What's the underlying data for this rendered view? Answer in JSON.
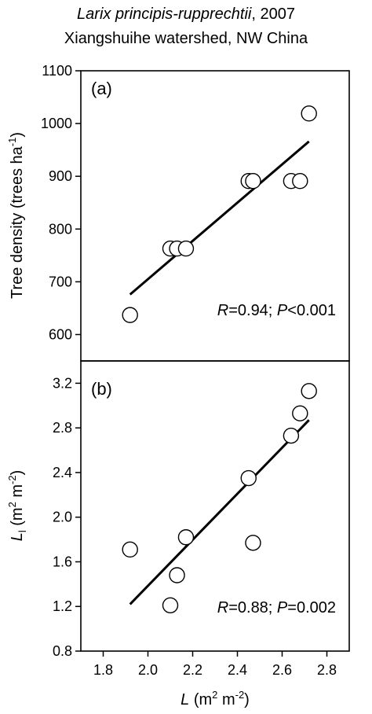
{
  "header": {
    "title_italic": "Larix principis-rupprechtii",
    "title_suffix": ", 2007",
    "subtitle": "Xiangshuihe watershed,  NW  China"
  },
  "chart_data": [
    {
      "type": "scatter",
      "panel_label": "(a)",
      "ylabel": "Tree density (trees ha⁻¹)",
      "xlim": [
        1.7,
        2.9
      ],
      "ylim": [
        550,
        1100
      ],
      "yticks": [
        600,
        700,
        800,
        900,
        1000,
        1100
      ],
      "points": [
        {
          "x": 1.92,
          "y": 637
        },
        {
          "x": 2.1,
          "y": 763
        },
        {
          "x": 2.13,
          "y": 763
        },
        {
          "x": 2.17,
          "y": 763
        },
        {
          "x": 2.45,
          "y": 891
        },
        {
          "x": 2.47,
          "y": 891
        },
        {
          "x": 2.64,
          "y": 891
        },
        {
          "x": 2.68,
          "y": 891
        },
        {
          "x": 2.72,
          "y": 1019
        }
      ],
      "fit_line": {
        "x": [
          1.92,
          2.72
        ],
        "y": [
          676,
          966
        ]
      },
      "annotation": {
        "R_label": "R",
        "R_value": "=0.94; ",
        "P_label": "P",
        "P_value": "<0.001"
      }
    },
    {
      "type": "scatter",
      "panel_label": "(b)",
      "ylabel": "L_l (m² m⁻²)",
      "xlabel": "L (m² m⁻²)",
      "xlim": [
        1.7,
        2.9
      ],
      "ylim": [
        0.8,
        3.4
      ],
      "xticks": [
        1.8,
        2.0,
        2.2,
        2.4,
        2.6,
        2.8
      ],
      "yticks": [
        0.8,
        1.2,
        1.6,
        2.0,
        2.4,
        2.8,
        3.2
      ],
      "points": [
        {
          "x": 1.92,
          "y": 1.71
        },
        {
          "x": 2.1,
          "y": 1.21
        },
        {
          "x": 2.13,
          "y": 1.48
        },
        {
          "x": 2.17,
          "y": 1.82
        },
        {
          "x": 2.45,
          "y": 2.35
        },
        {
          "x": 2.47,
          "y": 1.77
        },
        {
          "x": 2.64,
          "y": 2.73
        },
        {
          "x": 2.68,
          "y": 2.93
        },
        {
          "x": 2.72,
          "y": 3.13
        }
      ],
      "fit_line": {
        "x": [
          1.92,
          2.72
        ],
        "y": [
          1.22,
          2.87
        ]
      },
      "annotation": {
        "R_label": "R",
        "R_value": "=0.88; ",
        "P_label": "P",
        "P_value": "=0.002"
      }
    }
  ]
}
